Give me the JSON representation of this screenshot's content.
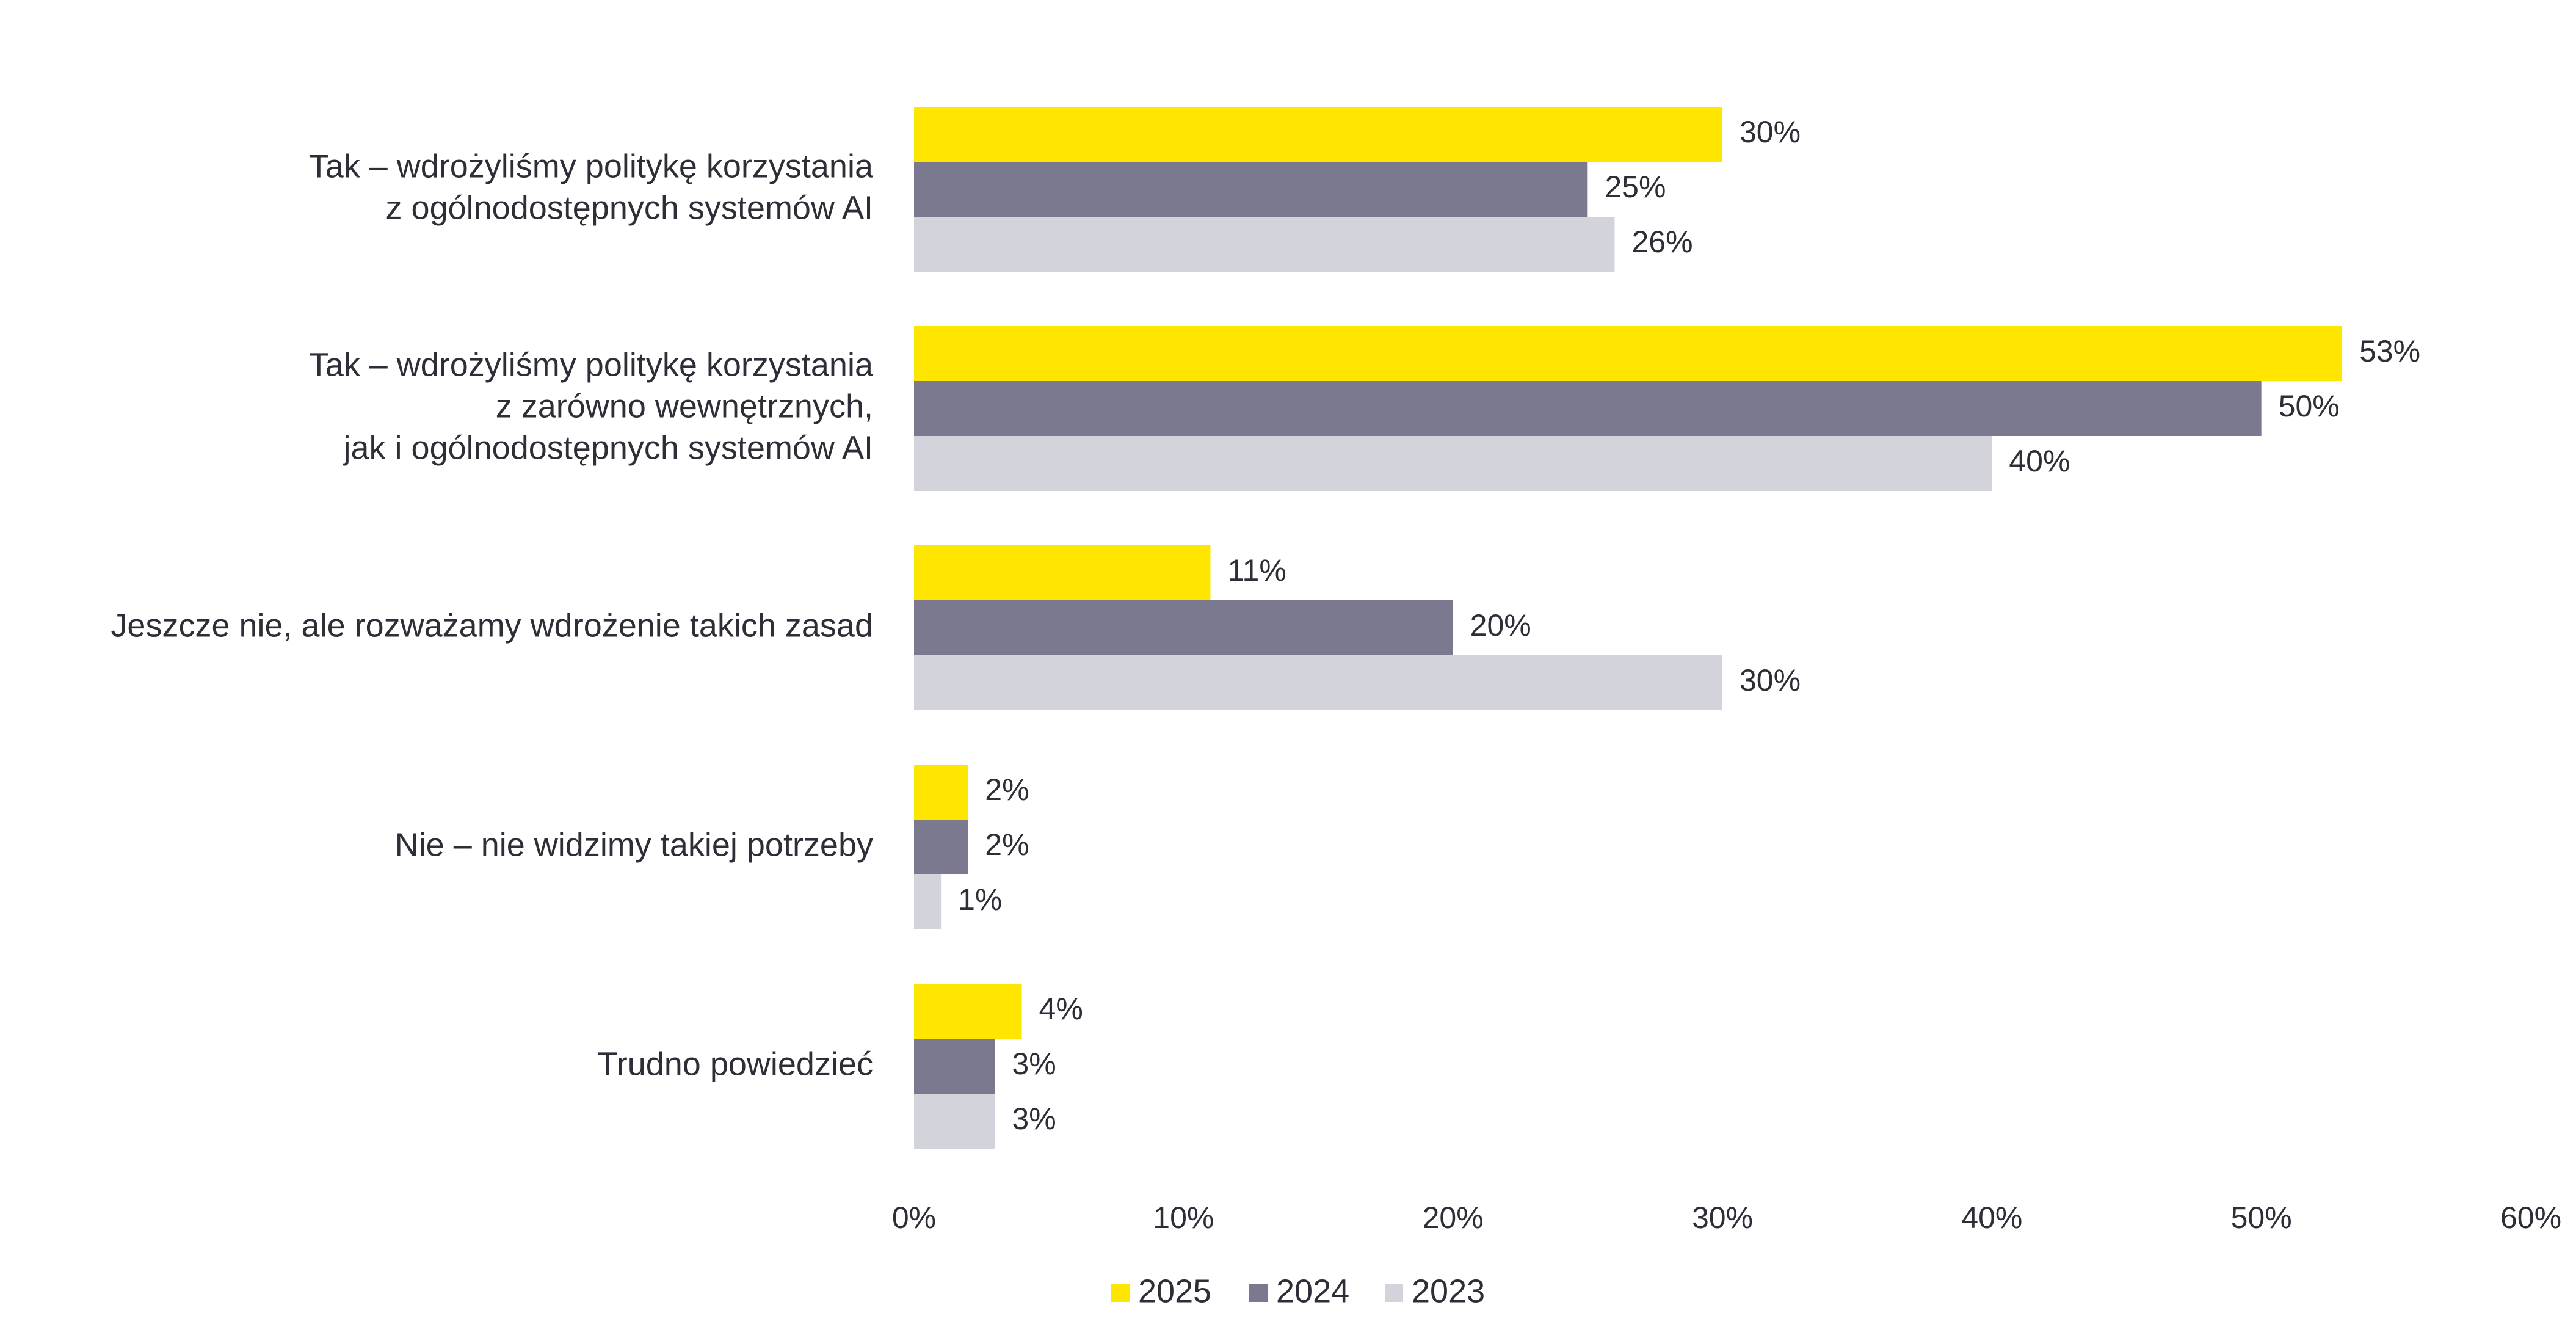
{
  "chart_data": {
    "type": "bar",
    "orientation": "horizontal",
    "categories": [
      [
        "Tak – wdrożyliśmy politykę korzystania",
        "z ogólnodostępnych systemów AI"
      ],
      [
        "Tak – wdrożyliśmy politykę korzystania",
        "z zarówno wewnętrznych,",
        "jak i ogólnodostępnych systemów AI"
      ],
      [
        "Jeszcze nie, ale rozważamy wdrożenie takich zasad"
      ],
      [
        "Nie – nie widzimy takiej potrzeby"
      ],
      [
        "Trudno powiedzieć"
      ]
    ],
    "series": [
      {
        "name": "2025",
        "color": "#ffe600",
        "values": [
          30,
          53,
          11,
          2,
          4
        ],
        "labels": [
          "30%",
          "53%",
          "11%",
          "2%",
          "4%"
        ]
      },
      {
        "name": "2024",
        "color": "#7a7990",
        "values": [
          25,
          50,
          20,
          2,
          3
        ],
        "labels": [
          "25%",
          "50%",
          "20%",
          "2%",
          "3%"
        ]
      },
      {
        "name": "2023",
        "color": "#d3d3db",
        "values": [
          26,
          40,
          30,
          1,
          3
        ],
        "labels": [
          "26%",
          "40%",
          "30%",
          "1%",
          "3%"
        ]
      }
    ],
    "xlim": [
      0,
      60
    ],
    "ticks": [
      0,
      10,
      20,
      30,
      40,
      50,
      60
    ],
    "tick_labels": [
      "0%",
      "10%",
      "20%",
      "30%",
      "40%",
      "50%",
      "60%"
    ],
    "grid": false,
    "legend_position": "bottom-center"
  }
}
